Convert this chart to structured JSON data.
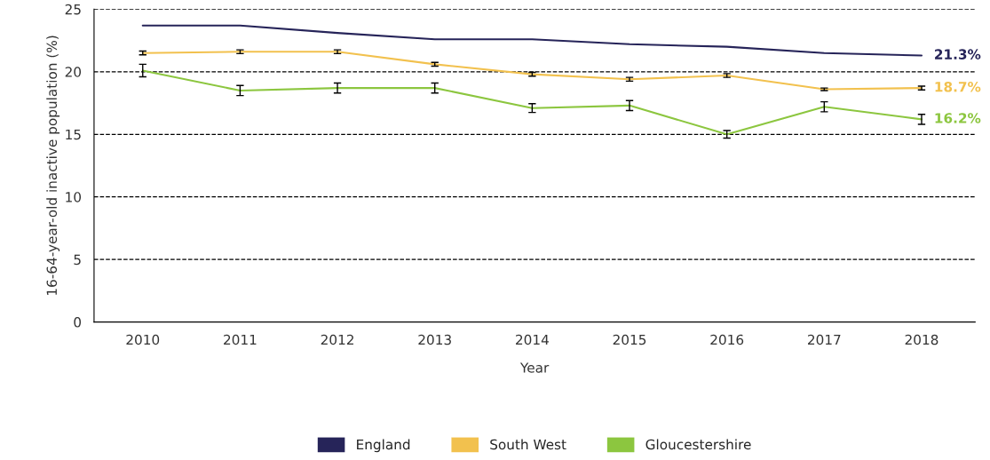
{
  "chart_data": {
    "type": "line",
    "xlabel": "Year",
    "ylabel": "16-64-year-old inactive population (%)",
    "categories": [
      "2010",
      "2011",
      "2012",
      "2013",
      "2014",
      "2015",
      "2016",
      "2017",
      "2018"
    ],
    "series": [
      {
        "name": "England",
        "color": "#262459",
        "values": [
          23.7,
          23.7,
          23.1,
          22.6,
          22.6,
          22.2,
          22.0,
          21.5,
          21.3
        ],
        "value_labels": [
          null,
          null,
          null,
          null,
          null,
          null,
          null,
          null,
          "21.3%"
        ]
      },
      {
        "name": "South West",
        "color": "#f2c14e",
        "values": [
          21.5,
          21.6,
          21.6,
          20.6,
          19.8,
          19.4,
          19.7,
          18.6,
          18.7
        ],
        "errors": [
          0.15,
          0.15,
          0.15,
          0.15,
          0.15,
          0.15,
          0.15,
          0.1,
          0.15
        ],
        "value_labels": [
          null,
          null,
          null,
          null,
          null,
          null,
          null,
          null,
          "18.7%"
        ]
      },
      {
        "name": "Gloucestershire",
        "color": "#8cc63f",
        "values": [
          20.1,
          18.5,
          18.7,
          18.7,
          17.1,
          17.3,
          15.0,
          17.2,
          16.2
        ],
        "errors": [
          0.5,
          0.4,
          0.4,
          0.4,
          0.35,
          0.4,
          0.3,
          0.4,
          0.4
        ],
        "value_labels": [
          null,
          null,
          null,
          null,
          null,
          null,
          null,
          null,
          "16.2%"
        ]
      }
    ],
    "ylim": [
      0,
      25
    ],
    "yticks": [
      0,
      5,
      10,
      15,
      20,
      25
    ],
    "grid": "y",
    "legend": "bottom",
    "marker": "none",
    "line_style": "solid"
  }
}
